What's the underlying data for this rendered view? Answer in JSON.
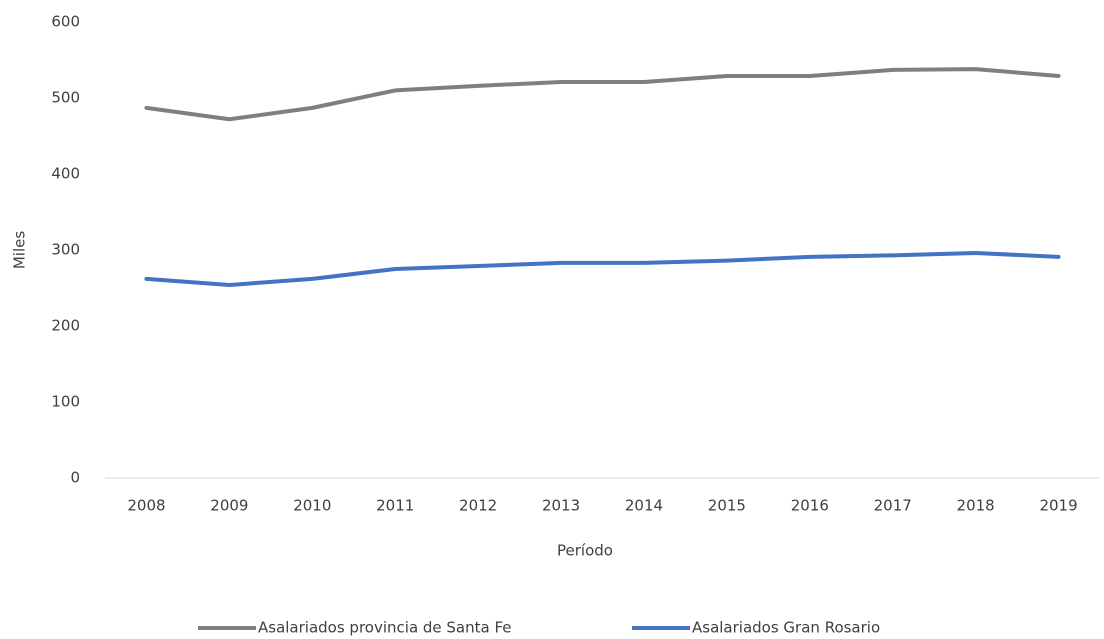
{
  "chart_data": {
    "type": "line",
    "x_label": "Período",
    "y_label": "Miles",
    "categories": [
      "2008",
      "2009",
      "2010",
      "2011",
      "2012",
      "2013",
      "2014",
      "2015",
      "2016",
      "2017",
      "2018",
      "2019"
    ],
    "series": [
      {
        "name": "Asalariados provincia de Santa Fe",
        "color": "#7f7f7f",
        "values": [
          487,
          472,
          487,
          510,
          516,
          521,
          521,
          529,
          529,
          537,
          538,
          529
        ]
      },
      {
        "name": "Asalariados Gran Rosario",
        "color": "#4472c4",
        "values": [
          262,
          254,
          262,
          275,
          279,
          283,
          283,
          286,
          291,
          293,
          296,
          291
        ]
      }
    ],
    "ylim": [
      0,
      600
    ],
    "yticks": [
      0,
      100,
      200,
      300,
      400,
      500,
      600
    ],
    "grid": false,
    "legend": "bottom"
  }
}
